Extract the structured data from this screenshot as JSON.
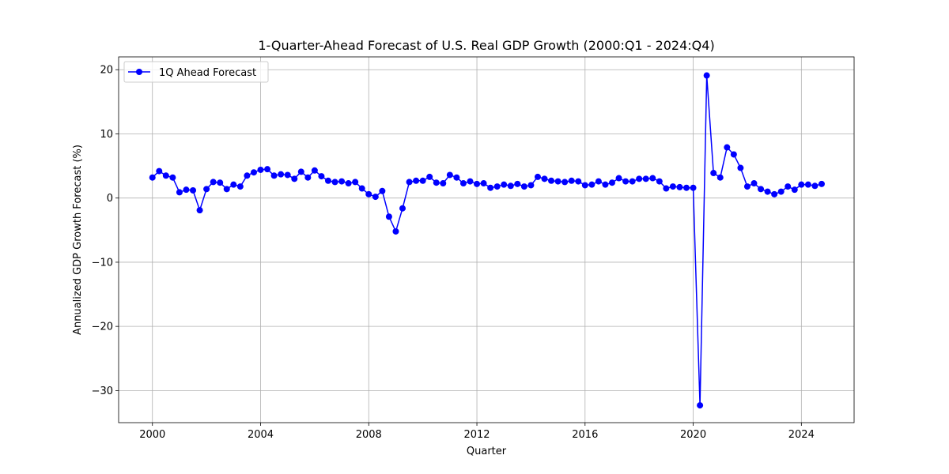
{
  "chart_data": {
    "type": "line",
    "title": "1-Quarter-Ahead Forecast of U.S. Real GDP Growth (2000:Q1 - 2024:Q4)",
    "xlabel": "Quarter",
    "ylabel": "Annualized GDP Growth Forecast (%)",
    "xlim": [
      1998.75,
      2025.95
    ],
    "ylim": [
      -35,
      22
    ],
    "xticks": [
      2000,
      2004,
      2008,
      2012,
      2016,
      2020,
      2024
    ],
    "xtick_labels": [
      "2000",
      "2004",
      "2008",
      "2012",
      "2016",
      "2020",
      "2024"
    ],
    "yticks": [
      -30,
      -20,
      -10,
      0,
      10,
      20
    ],
    "ytick_labels": [
      "−30",
      "−20",
      "−10",
      "0",
      "10",
      "20"
    ],
    "grid": true,
    "legend_position": "top-left",
    "series": [
      {
        "name": "1Q Ahead Forecast",
        "color": "#0000ff",
        "marker": "circle",
        "x": [
          2000.0,
          2000.25,
          2000.5,
          2000.75,
          2001.0,
          2001.25,
          2001.5,
          2001.75,
          2002.0,
          2002.25,
          2002.5,
          2002.75,
          2003.0,
          2003.25,
          2003.5,
          2003.75,
          2004.0,
          2004.25,
          2004.5,
          2004.75,
          2005.0,
          2005.25,
          2005.5,
          2005.75,
          2006.0,
          2006.25,
          2006.5,
          2006.75,
          2007.0,
          2007.25,
          2007.5,
          2007.75,
          2008.0,
          2008.25,
          2008.5,
          2008.75,
          2009.0,
          2009.25,
          2009.5,
          2009.75,
          2010.0,
          2010.25,
          2010.5,
          2010.75,
          2011.0,
          2011.25,
          2011.5,
          2011.75,
          2012.0,
          2012.25,
          2012.5,
          2012.75,
          2013.0,
          2013.25,
          2013.5,
          2013.75,
          2014.0,
          2014.25,
          2014.5,
          2014.75,
          2015.0,
          2015.25,
          2015.5,
          2015.75,
          2016.0,
          2016.25,
          2016.5,
          2016.75,
          2017.0,
          2017.25,
          2017.5,
          2017.75,
          2018.0,
          2018.25,
          2018.5,
          2018.75,
          2019.0,
          2019.25,
          2019.5,
          2019.75,
          2020.0,
          2020.25,
          2020.5,
          2020.75,
          2021.0,
          2021.25,
          2021.5,
          2021.75,
          2022.0,
          2022.25,
          2022.5,
          2022.75,
          2023.0,
          2023.25,
          2023.5,
          2023.75,
          2024.0,
          2024.25,
          2024.5,
          2024.75
        ],
        "values": [
          3.2,
          4.2,
          3.5,
          3.2,
          0.9,
          1.3,
          1.2,
          -1.9,
          1.4,
          2.5,
          2.4,
          1.4,
          2.1,
          1.8,
          3.5,
          4.0,
          4.4,
          4.5,
          3.5,
          3.7,
          3.6,
          3.0,
          4.1,
          3.2,
          4.3,
          3.4,
          2.7,
          2.5,
          2.6,
          2.3,
          2.5,
          1.5,
          0.6,
          0.2,
          1.1,
          -2.9,
          -5.2,
          -1.6,
          2.5,
          2.7,
          2.7,
          3.3,
          2.4,
          2.3,
          3.6,
          3.2,
          2.3,
          2.6,
          2.2,
          2.3,
          1.6,
          1.8,
          2.1,
          1.9,
          2.2,
          1.8,
          2.0,
          3.3,
          3.0,
          2.7,
          2.6,
          2.5,
          2.7,
          2.6,
          2.0,
          2.1,
          2.6,
          2.1,
          2.4,
          3.1,
          2.6,
          2.6,
          3.0,
          3.0,
          3.1,
          2.6,
          1.5,
          1.8,
          1.7,
          1.6,
          1.6,
          -32.3,
          19.1,
          3.9,
          3.2,
          7.9,
          6.8,
          4.7,
          1.8,
          2.3,
          1.4,
          1.0,
          0.6,
          1.0,
          1.8,
          1.3,
          2.1,
          2.1,
          1.9,
          2.2
        ]
      }
    ]
  }
}
